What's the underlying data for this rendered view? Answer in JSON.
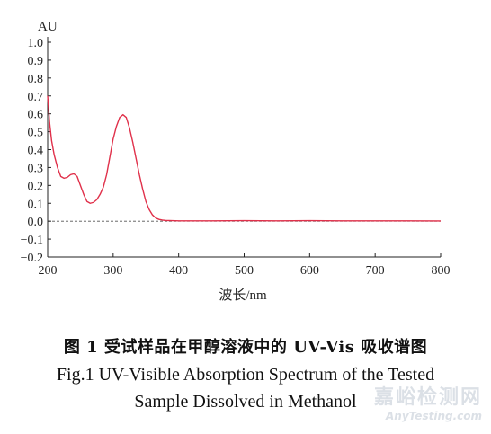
{
  "chart_data": {
    "type": "line",
    "title": "",
    "ylabel": "AU",
    "xlabel": "波长/nm",
    "xlim": [
      200,
      800
    ],
    "ylim": [
      -0.2,
      1.0
    ],
    "x_ticks": [
      200,
      300,
      400,
      500,
      600,
      700,
      800
    ],
    "y_ticks": [
      1.0,
      0.9,
      0.8,
      0.7,
      0.6,
      0.5,
      0.4,
      0.3,
      0.2,
      0.1,
      0.0,
      -0.1,
      -0.2
    ],
    "y_tick_labels": [
      "1.0",
      "0.9",
      "0.8",
      "0.7",
      "0.6",
      "0.5",
      "0.4",
      "0.3",
      "0.2",
      "0.1",
      "0.0",
      "−0.1",
      "−0.2"
    ],
    "baseline": 0.0,
    "series": [
      {
        "color": "#e0304a",
        "x": [
          200,
          203,
          206,
          210,
          215,
          220,
          225,
          230,
          235,
          240,
          245,
          250,
          255,
          260,
          265,
          270,
          275,
          280,
          285,
          290,
          295,
          300,
          305,
          310,
          315,
          320,
          325,
          330,
          335,
          340,
          345,
          350,
          355,
          360,
          365,
          370,
          375,
          380,
          390,
          400,
          450,
          500,
          550,
          600,
          650,
          700,
          750,
          800
        ],
        "y": [
          0.7,
          0.55,
          0.45,
          0.37,
          0.3,
          0.25,
          0.24,
          0.245,
          0.26,
          0.265,
          0.25,
          0.2,
          0.15,
          0.11,
          0.1,
          0.105,
          0.12,
          0.15,
          0.19,
          0.26,
          0.36,
          0.46,
          0.53,
          0.58,
          0.595,
          0.58,
          0.52,
          0.44,
          0.35,
          0.26,
          0.18,
          0.11,
          0.065,
          0.035,
          0.018,
          0.01,
          0.006,
          0.004,
          0.003,
          0.002,
          0.002,
          0.003,
          0.002,
          0.003,
          0.002,
          0.002,
          0.002,
          0.001
        ]
      }
    ]
  },
  "captions": {
    "zh": "图 1   受试样品在甲醇溶液中的 UV-Vis 吸收谱图",
    "en_line1": "Fig.1   UV-Visible Absorption Spectrum of the Tested",
    "en_line2": "Sample Dissolved in Methanol"
  },
  "watermark": {
    "cn": "嘉峪检测网",
    "en": "AnyTesting.com"
  }
}
